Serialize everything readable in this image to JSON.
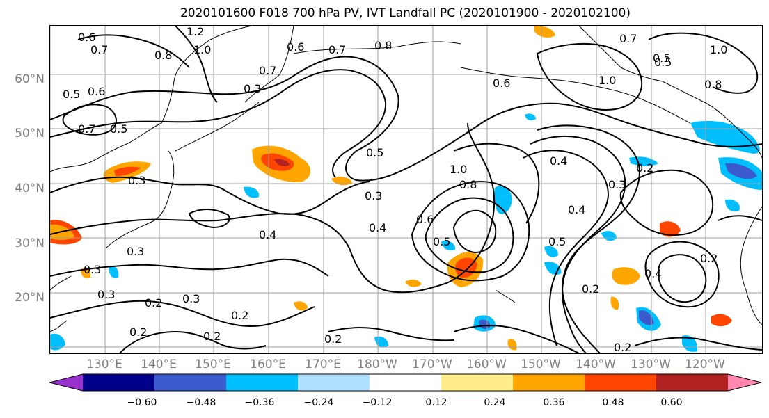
{
  "title": "2020101600 F018 700 hPa PV, IVT Landfall PC (2020101900 - 2020102100)",
  "map": {
    "lat_labels": [
      "60°N",
      "50°N",
      "40°N",
      "30°N",
      "20°N"
    ],
    "lon_labels": [
      "130°E",
      "140°E",
      "150°E",
      "160°E",
      "170°E",
      "180°W",
      "170°W",
      "160°W",
      "150°W",
      "140°W",
      "130°W",
      "120°W"
    ],
    "contour_labels": [
      "1.2",
      "0.6",
      "0.7",
      "0.8",
      "1.0",
      "0.7",
      "0.6",
      "0.7",
      "0.8",
      "0.5",
      "0.6",
      "0.3",
      "0.5",
      "0.7",
      "0.5",
      "0.3",
      "0.3",
      "1.0",
      "0.8",
      "0.4",
      "0.6",
      "0.5",
      "0.3",
      "0.4",
      "0.3",
      "0.3",
      "0.2",
      "0.2",
      "0.3",
      "0.2",
      "0.2",
      "0.2",
      "0.2",
      "0.5",
      "0.4",
      "0.3",
      "0.2",
      "0.2",
      "0.4",
      "0.2",
      "0.4",
      "0.7",
      "1.0",
      "0.6",
      "0.5",
      "0.8",
      "1.0",
      "0.5"
    ],
    "colors": {
      "contour": "#000000",
      "grid": "#a0a0a0",
      "coast": "#000000"
    }
  },
  "colorbar": {
    "ticks": [
      "−0.60",
      "−0.48",
      "−0.36",
      "−0.24",
      "−0.12",
      "0.12",
      "0.24",
      "0.36",
      "0.48",
      "0.60"
    ],
    "colors": [
      "#9932cc",
      "#00008b",
      "#3a5acd",
      "#00bfff",
      "#b0e0ff",
      "#ffffff",
      "#ffec8b",
      "#ffa500",
      "#ff4500",
      "#b22222",
      "#ff88b0"
    ]
  }
}
